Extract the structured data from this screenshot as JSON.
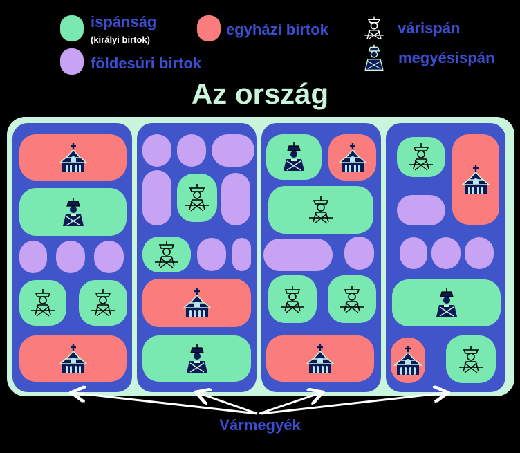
{
  "legend": {
    "ispansag": {
      "label": "ispánság",
      "sub": "(királyi birtok)",
      "color": "#7ae8b1"
    },
    "foldesuri": {
      "label": "földesúri birtok",
      "color": "#c8a2f3"
    },
    "egyhazi": {
      "label": "egyházi birtok",
      "color": "#fa7c7c"
    },
    "varispan": {
      "label": "várispán",
      "icon": "castle-guard-icon"
    },
    "megyesispan": {
      "label": "megyésispán",
      "icon": "count-bust-icon"
    }
  },
  "title": "Az ország",
  "bottom_label": "Vármegyék",
  "colors": {
    "county": "#3f55c9",
    "country": "#c9f5dc",
    "text": "#3b4ecf",
    "ispansag": "#7ae8b1",
    "egyhazi": "#fa7c7c",
    "foldesuri": "#c8a2f3"
  }
}
